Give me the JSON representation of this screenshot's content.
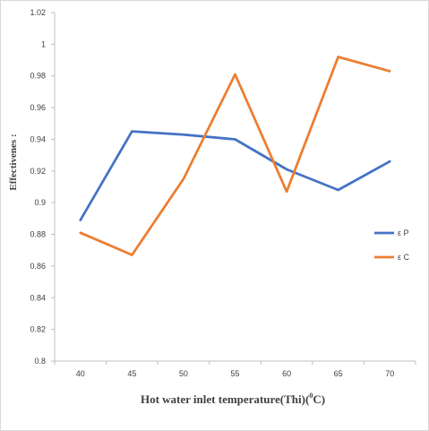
{
  "chart_data": {
    "type": "line",
    "xlabel": "Hot water inlet temperature(Thi)(",
    "xlabel_degree": "0",
    "xlabel_unit": "C)",
    "ylabel": "Effectivenes :",
    "categories": [
      "40",
      "45",
      "50",
      "55",
      "60",
      "65",
      "70"
    ],
    "ylim": [
      0.8,
      1.02
    ],
    "yticks": [
      "0.8",
      "0.82",
      "0.84",
      "0.86",
      "0.88",
      "0.9",
      "0.92",
      "0.94",
      "0.96",
      "0.98",
      "1",
      "1.02"
    ],
    "legend_position": "right",
    "grid": false,
    "series": [
      {
        "name": "ε P",
        "color": "#4472C4",
        "values": [
          0.889,
          0.945,
          0.943,
          0.94,
          0.921,
          0.908,
          0.926
        ]
      },
      {
        "name": "ε C",
        "color": "#ED7D31",
        "values": [
          0.881,
          0.867,
          0.915,
          0.981,
          0.907,
          0.992,
          0.983
        ]
      }
    ]
  }
}
